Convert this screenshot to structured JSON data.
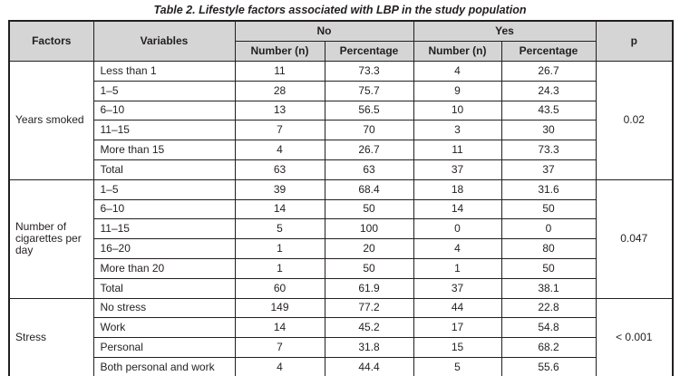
{
  "title": "Table 2. Lifestyle factors associated with LBP in the study population",
  "colors": {
    "header_bg": "#d5d5d5",
    "border": "#231f20",
    "text": "#231f20"
  },
  "table": {
    "col_headers": {
      "factors": "Factors",
      "variables": "Variables",
      "no_group": "No",
      "yes_group": "Yes",
      "number_no": "Number (n)",
      "percentage_no": "Percentage",
      "number_yes": "Number (n)",
      "percentage_yes": "Percentage",
      "p": "p"
    },
    "sections": [
      {
        "factor": "Years smoked",
        "p": "0.02",
        "rows": [
          {
            "variable": "Less than 1",
            "no_n": "11",
            "no_pct": "73.3",
            "yes_n": "4",
            "yes_pct": "26.7"
          },
          {
            "variable": "1–5",
            "no_n": "28",
            "no_pct": "75.7",
            "yes_n": "9",
            "yes_pct": "24.3"
          },
          {
            "variable": "6–10",
            "no_n": "13",
            "no_pct": "56.5",
            "yes_n": "10",
            "yes_pct": "43.5"
          },
          {
            "variable": "11–15",
            "no_n": "7",
            "no_pct": "70",
            "yes_n": "3",
            "yes_pct": "30"
          },
          {
            "variable": "More than 15",
            "no_n": "4",
            "no_pct": "26.7",
            "yes_n": "11",
            "yes_pct": "73.3"
          },
          {
            "variable": "Total",
            "no_n": "63",
            "no_pct": "63",
            "yes_n": "37",
            "yes_pct": "37"
          }
        ]
      },
      {
        "factor": "Number of cigarettes per day",
        "p": "0.047",
        "rows": [
          {
            "variable": "1–5",
            "no_n": "39",
            "no_pct": "68.4",
            "yes_n": "18",
            "yes_pct": "31.6"
          },
          {
            "variable": "6–10",
            "no_n": "14",
            "no_pct": "50",
            "yes_n": "14",
            "yes_pct": "50"
          },
          {
            "variable": "11–15",
            "no_n": "5",
            "no_pct": "100",
            "yes_n": "0",
            "yes_pct": "0"
          },
          {
            "variable": "16–20",
            "no_n": "1",
            "no_pct": "20",
            "yes_n": "4",
            "yes_pct": "80"
          },
          {
            "variable": "More than 20",
            "no_n": "1",
            "no_pct": "50",
            "yes_n": "1",
            "yes_pct": "50"
          },
          {
            "variable": "Total",
            "no_n": "60",
            "no_pct": "61.9",
            "yes_n": "37",
            "yes_pct": "38.1"
          }
        ]
      },
      {
        "factor": "Stress",
        "p": "< 0.001",
        "rows": [
          {
            "variable": "No stress",
            "no_n": "149",
            "no_pct": "77.2",
            "yes_n": "44",
            "yes_pct": "22.8"
          },
          {
            "variable": "Work",
            "no_n": "14",
            "no_pct": "45.2",
            "yes_n": "17",
            "yes_pct": "54.8"
          },
          {
            "variable": "Personal",
            "no_n": "7",
            "no_pct": "31.8",
            "yes_n": "15",
            "yes_pct": "68.2"
          },
          {
            "variable": "Both personal and work",
            "no_n": "4",
            "no_pct": "44.4",
            "yes_n": "5",
            "yes_pct": "55.6"
          }
        ]
      }
    ]
  }
}
